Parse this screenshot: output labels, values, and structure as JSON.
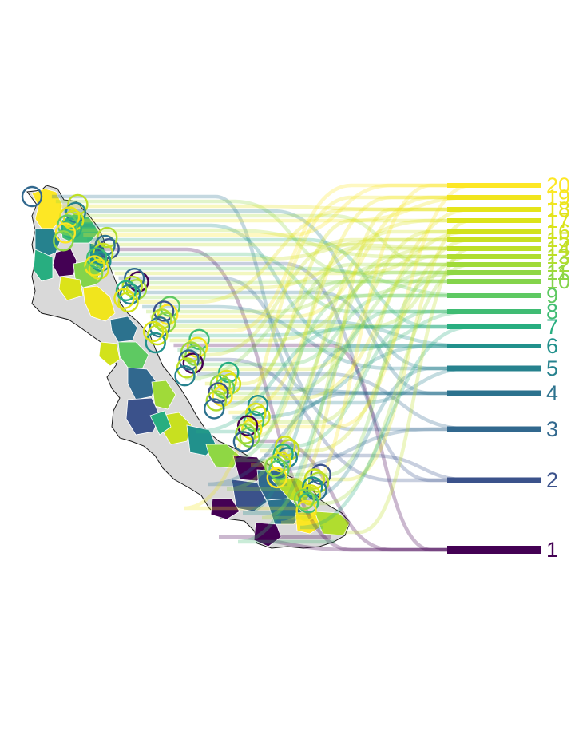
{
  "ranks": [
    {
      "label": "1",
      "color": "#440154"
    },
    {
      "label": "2",
      "color": "#3b528b"
    },
    {
      "label": "3",
      "color": "#31688e"
    },
    {
      "label": "4",
      "color": "#2c728e"
    },
    {
      "label": "5",
      "color": "#26828e"
    },
    {
      "label": "6",
      "color": "#21918c"
    },
    {
      "label": "7",
      "color": "#28ae80"
    },
    {
      "label": "8",
      "color": "#3fbc73"
    },
    {
      "label": "9",
      "color": "#5ec962"
    },
    {
      "label": "10",
      "color": "#84d44b"
    },
    {
      "label": "11",
      "color": "#8fd744"
    },
    {
      "label": "12",
      "color": "#a0da39"
    },
    {
      "label": "13",
      "color": "#b0dd2f"
    },
    {
      "label": "14",
      "color": "#bddf26"
    },
    {
      "label": "15",
      "color": "#c8e020"
    },
    {
      "label": "16",
      "color": "#d2e21b"
    },
    {
      "label": "17",
      "color": "#dce319"
    },
    {
      "label": "18",
      "color": "#e5e419"
    },
    {
      "label": "19",
      "color": "#f1e51d"
    },
    {
      "label": "20",
      "color": "#fde725"
    }
  ],
  "palette": {
    "missing_region": "#d9d9d9",
    "region_border": "#ffffff",
    "outline": "#1a1a1a"
  }
}
